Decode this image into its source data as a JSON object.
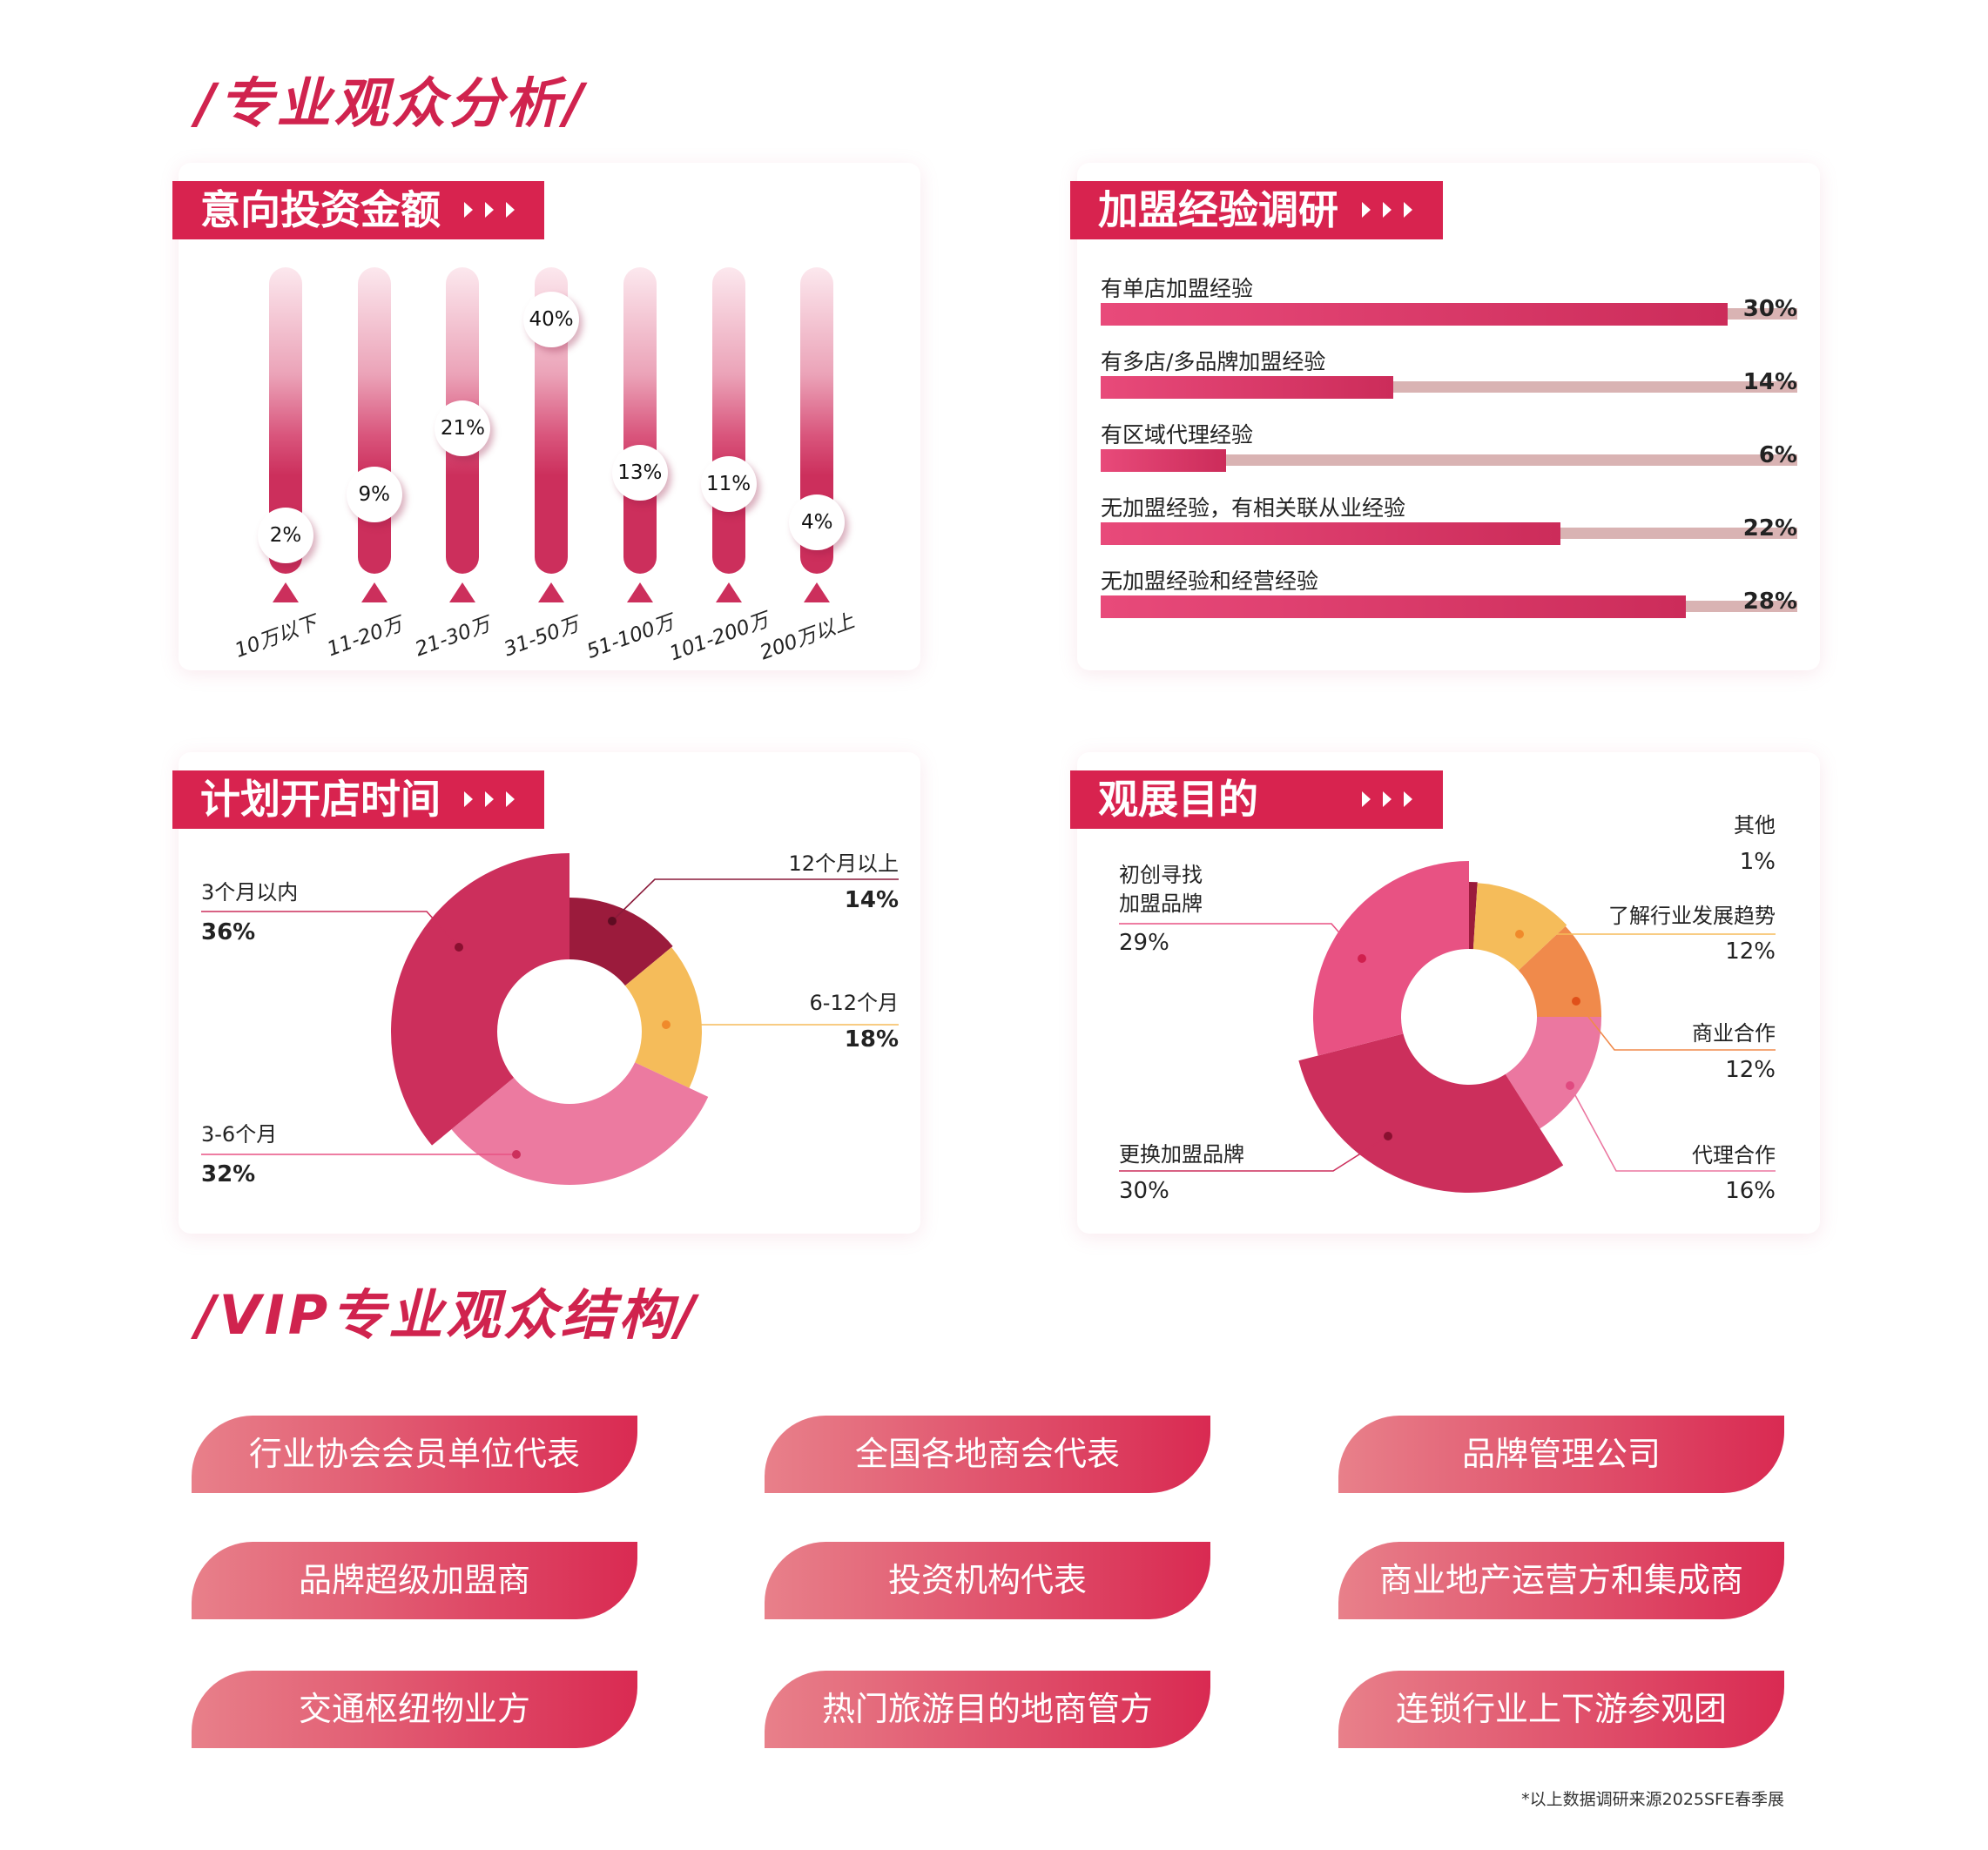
{
  "sections": {
    "analysis_title": "/专业观众分析/",
    "vip_title": "/VIP专业观众结构/"
  },
  "colors": {
    "brand": "#d8234f",
    "bar": "#cc2f5c",
    "track": "#d9b3b3"
  },
  "chart_data": [
    {
      "type": "bar",
      "title": "意向投资金额",
      "categories": [
        "10万以下",
        "11-20万",
        "21-30万",
        "31-50万",
        "51-100万",
        "101-200万",
        "200万以上"
      ],
      "values": [
        2,
        9,
        21,
        40,
        13,
        11,
        4
      ],
      "value_labels": [
        "2%",
        "9%",
        "21%",
        "40%",
        "13%",
        "11%",
        "4%"
      ],
      "unit": "%"
    },
    {
      "type": "bar",
      "orientation": "horizontal",
      "title": "加盟经验调研",
      "categories": [
        "有单店加盟经验",
        "有多店/多品牌加盟经验",
        "有区域代理经验",
        "无加盟经验，有相关联从业经验",
        "无加盟经验和经营经验"
      ],
      "values": [
        30,
        14,
        6,
        22,
        28
      ],
      "value_labels": [
        "30%",
        "14%",
        "6%",
        "22%",
        "28%"
      ],
      "unit": "%"
    },
    {
      "type": "pie",
      "style": "donut",
      "title": "计划开店时间",
      "slices": [
        {
          "label": "12个月以上",
          "value": 14,
          "value_label": "14%",
          "color": "#9b1b3c"
        },
        {
          "label": "6-12个月",
          "value": 18,
          "value_label": "18%",
          "color": "#f5bc5a"
        },
        {
          "label": "3-6个月",
          "value": 32,
          "value_label": "32%",
          "color": "#ec7aa0"
        },
        {
          "label": "3个月以内",
          "value": 36,
          "value_label": "36%",
          "color": "#cc2f5c"
        }
      ]
    },
    {
      "type": "pie",
      "style": "donut",
      "title": "观展目的",
      "slices": [
        {
          "label": "其他",
          "value": 1,
          "value_label": "1%",
          "color": "#9b1b3c"
        },
        {
          "label": "了解行业发展趋势",
          "value": 12,
          "value_label": "12%",
          "color": "#f5bc5a"
        },
        {
          "label": "商业合作",
          "value": 12,
          "value_label": "12%",
          "color": "#f08a4b"
        },
        {
          "label": "代理合作",
          "value": 16,
          "value_label": "16%",
          "color": "#eb77a0"
        },
        {
          "label": "更换加盟品牌",
          "value": 30,
          "value_label": "30%",
          "color": "#cc2f5c"
        },
        {
          "label": "初创寻找加盟品牌",
          "label_lines": [
            "初创寻找",
            "加盟品牌"
          ],
          "value": 29,
          "value_label": "29%",
          "color": "#e85283"
        }
      ]
    }
  ],
  "vip": {
    "items": [
      "行业协会会员单位代表",
      "全国各地商会代表",
      "品牌管理公司",
      "品牌超级加盟商",
      "投资机构代表",
      "商业地产运营方和集成商",
      "交通枢纽物业方",
      "热门旅游目的地商管方",
      "连锁行业上下游参观团"
    ]
  },
  "footnote": "*以上数据调研来源2025SFE春季展"
}
